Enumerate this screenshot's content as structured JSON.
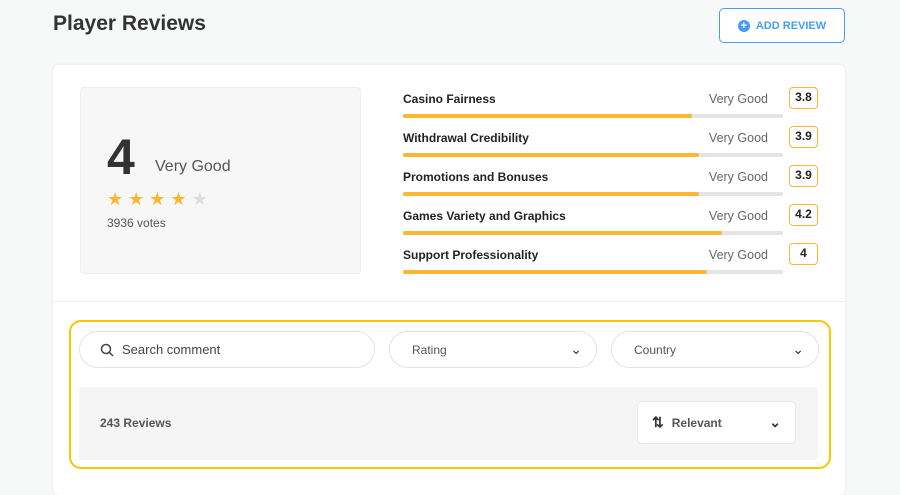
{
  "header": {
    "title": "Player Reviews",
    "add_review_label": "ADD REVIEW"
  },
  "summary": {
    "score": "4",
    "label": "Very Good",
    "stars": 4,
    "max_stars": 5,
    "votes": "3936 votes"
  },
  "categories": [
    {
      "name": "Casino Fairness",
      "label": "Very Good",
      "score": "3.8",
      "value": 3.8
    },
    {
      "name": "Withdrawal Credibility",
      "label": "Very Good",
      "score": "3.9",
      "value": 3.9
    },
    {
      "name": "Promotions and Bonuses",
      "label": "Very Good",
      "score": "3.9",
      "value": 3.9
    },
    {
      "name": "Games Variety and Graphics",
      "label": "Very Good",
      "score": "4.2",
      "value": 4.2
    },
    {
      "name": "Support Professionality",
      "label": "Very Good",
      "score": "4",
      "value": 4
    }
  ],
  "filters": {
    "search_placeholder": "Search comment",
    "rating": "Rating",
    "country": "Country"
  },
  "results": {
    "count": "243 Reviews",
    "sort": "Relevant"
  },
  "colors": {
    "accent": "#fbb731",
    "highlight": "#f5c800",
    "button": "#4a9cf0"
  }
}
